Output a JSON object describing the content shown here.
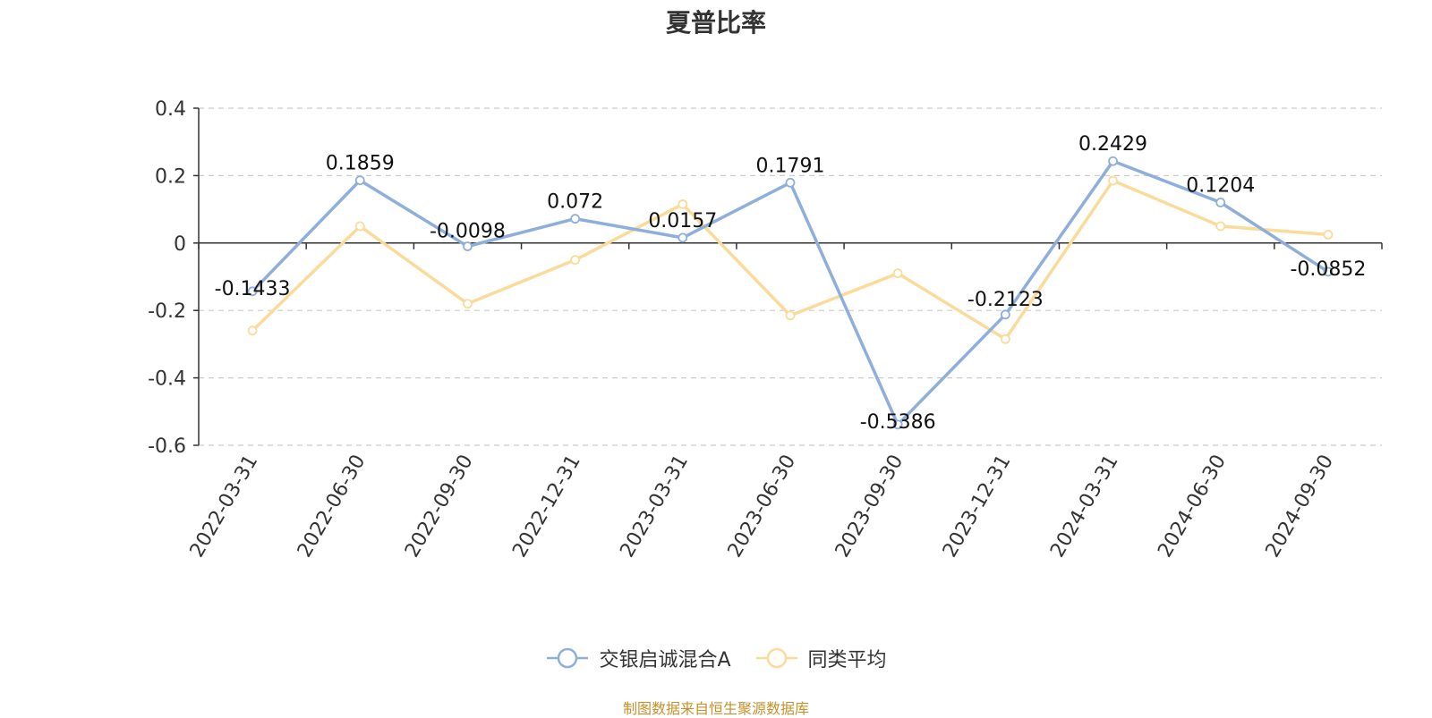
{
  "chart_data": {
    "type": "line",
    "title": "夏普比率",
    "categories": [
      "2022-03-31",
      "2022-06-30",
      "2022-09-30",
      "2022-12-31",
      "2023-03-31",
      "2023-06-30",
      "2023-09-30",
      "2023-12-31",
      "2024-03-31",
      "2024-06-30",
      "2024-09-30"
    ],
    "ylim": [
      -0.6,
      0.4
    ],
    "yticks": [
      "0.4",
      "0.2",
      "0",
      "-0.2",
      "-0.4",
      "-0.6"
    ],
    "ytick_values": [
      0.4,
      0.2,
      0,
      -0.2,
      -0.4,
      -0.6
    ],
    "grid": true,
    "legend_position": "bottom-center",
    "series": [
      {
        "name": "交银启诚混合A",
        "color": "#8eaedb",
        "values": [
          -0.1433,
          0.1859,
          -0.0098,
          0.072,
          0.0157,
          0.1791,
          -0.5386,
          -0.2123,
          0.2429,
          0.1204,
          -0.0852
        ],
        "labels": [
          "-0.1433",
          "0.1859",
          "-0.0098",
          "0.072",
          "0.0157",
          "0.1791",
          "-0.5386",
          "-0.2123",
          "0.2429",
          "0.1204",
          "-0.0852"
        ]
      },
      {
        "name": "同类平均",
        "color": "#fadb9a",
        "values": [
          -0.26,
          0.05,
          -0.18,
          -0.05,
          0.115,
          -0.215,
          -0.09,
          -0.285,
          0.185,
          0.05,
          0.025
        ]
      }
    ]
  },
  "source_note": "制图数据来自恒生聚源数据库"
}
